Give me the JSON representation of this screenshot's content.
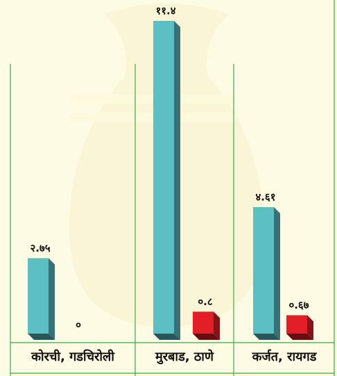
{
  "chart_data": {
    "type": "bar",
    "categories": [
      "कोरची, गडचिरोली",
      "मुरबाड, ठाणे",
      "कर्जत, रायगड"
    ],
    "series": [
      {
        "color": "#5bbfc4",
        "values": [
          2.75,
          11.4,
          4.61
        ],
        "value_labels": [
          "२.७५",
          "११.४",
          "४.६१"
        ]
      },
      {
        "color": "#e41e26",
        "values": [
          0,
          0.8,
          0.67
        ],
        "value_labels": [
          "०",
          "०.८",
          "०.६७"
        ]
      }
    ]
  }
}
